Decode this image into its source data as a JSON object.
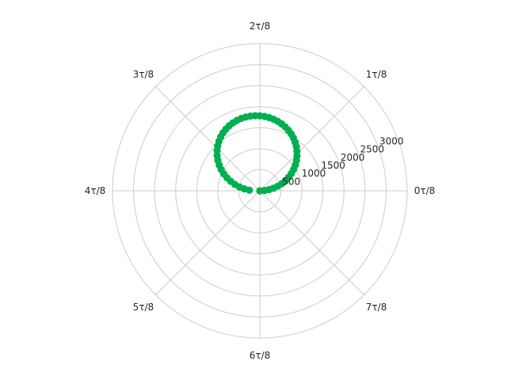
{
  "chart_data": {
    "type": "scatter",
    "projection": "polar",
    "title": "",
    "angular_tick_labels": [
      "0τ/8",
      "1τ/8",
      "2τ/8",
      "3τ/8",
      "4τ/8",
      "5τ/8",
      "6τ/8",
      "7τ/8"
    ],
    "radial_tick_values": [
      500,
      1000,
      1500,
      2000,
      2500,
      3000
    ],
    "radial_tick_labels": [
      "500",
      "1000",
      "1500",
      "2000",
      "2500",
      "3000"
    ],
    "radial_label_angle_deg": 22.5,
    "rlim": [
      0,
      3500
    ],
    "grid": true,
    "series": [
      {
        "color": "#00b050",
        "marker": "circle",
        "theta_deg": [
          0,
          3.6,
          7.2,
          10.8,
          14.4,
          18,
          21.6,
          25.2,
          28.8,
          32.4,
          36,
          39.6,
          43.2,
          46.8,
          50.4,
          54,
          57.6,
          61.2,
          64.8,
          68.4,
          72,
          75.6,
          79.2,
          82.8,
          86.4,
          90,
          93.6,
          97.2,
          100.8,
          104.4,
          108,
          111.6,
          115.2,
          118.8,
          122.4,
          126,
          129.6,
          133.2,
          136.8,
          140.4,
          144,
          147.6,
          151.2,
          154.8,
          158.4,
          162,
          165.6,
          169.2,
          172.8,
          176.4,
          180
        ],
        "r": [
          0,
          111,
          222,
          332,
          441,
          548,
          653,
          755,
          854,
          950,
          1041,
          1128,
          1211,
          1288,
          1360,
          1427,
          1488,
          1543,
          1592,
          1635,
          1673,
          1705,
          1732,
          1754,
          1770,
          1782,
          1788,
          1789,
          1785,
          1775,
          1759,
          1737,
          1709,
          1674,
          1632,
          1583,
          1527,
          1464,
          1394,
          1317,
          1233,
          1143,
          1047,
          945,
          838,
          727,
          612,
          494,
          373,
          249,
          0
        ]
      }
    ]
  }
}
